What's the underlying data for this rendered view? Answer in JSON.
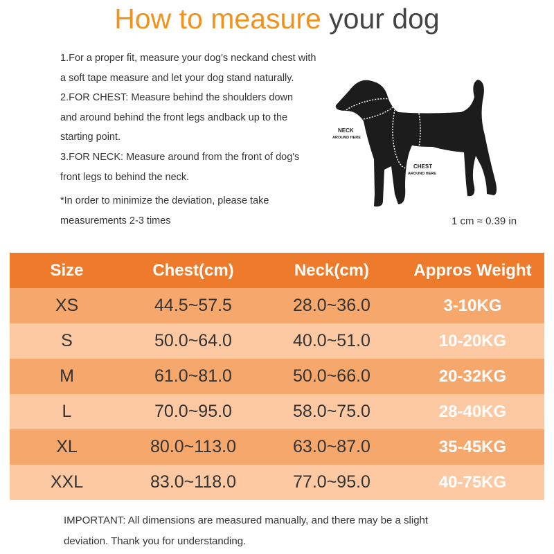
{
  "title": {
    "highlight": "How to measure",
    "rest": " your dog"
  },
  "instructions": [
    "1.For a proper fit, measure your dog's neckand chest with",
    "a soft tape measure and let your dog stand naturally.",
    "2.FOR CHEST: Measure behind the shoulders down",
    "and around behind the front legs andback up to the",
    "starting point.",
    "3.FOR NECK: Measure around from the front of dog's",
    "front legs to behind the neck.",
    "*In order to minimize the deviation, please take",
    "measurements 2-3 times"
  ],
  "diagram": {
    "neck_label": "NECK",
    "neck_sub": "AROUND HERE",
    "chest_label": "CHEST",
    "chest_sub": "AROUND HERE"
  },
  "conversion": "1 cm ≈ 0.39 in",
  "table": {
    "headers": [
      "Size",
      "Chest(cm)",
      "Neck(cm)",
      "Appros Weight"
    ],
    "rows": [
      [
        "XS",
        "44.5~57.5",
        "28.0~36.0",
        "3-10KG"
      ],
      [
        "S",
        "50.0~64.0",
        "40.0~51.0",
        "10-20KG"
      ],
      [
        "M",
        "61.0~81.0",
        "50.0~66.0",
        "20-32KG"
      ],
      [
        "L",
        "70.0~95.0",
        "58.0~75.0",
        "28-40KG"
      ],
      [
        "XL",
        "80.0~113.0",
        "63.0~87.0",
        "35-45KG"
      ],
      [
        "XXL",
        "83.0~118.0",
        "77.0~95.0",
        "40-75KG"
      ]
    ]
  },
  "important": [
    "IMPORTANT: All dimensions are measured manually, and there may be a slight",
    "deviation. Thank you for understanding."
  ],
  "colors": {
    "accent": "#f0921e",
    "header": "#ee7a2c",
    "row_dark": "#f6a76c",
    "row_light": "#fcc9a3"
  }
}
